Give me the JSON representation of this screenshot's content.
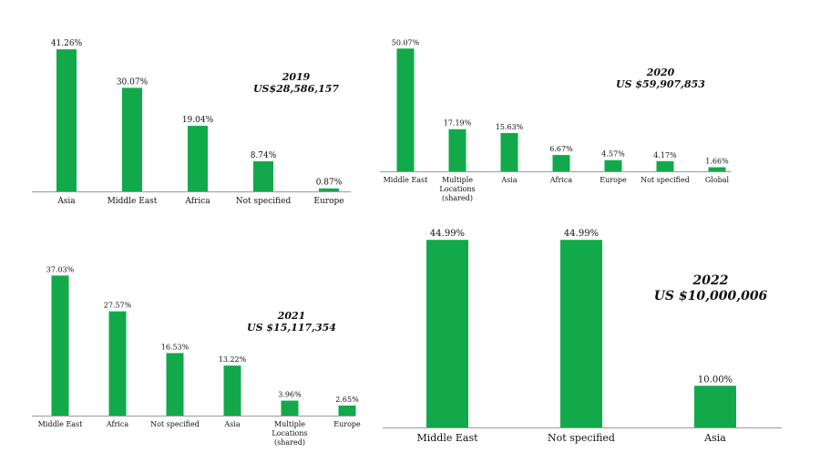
{
  "colors": {
    "bar": "#12a94b",
    "axis": "#9a9a9a",
    "text": "#111111"
  },
  "chart_data": [
    {
      "type": "bar",
      "annotation": {
        "year": "2019",
        "total": "US$28,586,157"
      },
      "categories": [
        [
          "Asia"
        ],
        [
          "Middle East"
        ],
        [
          "Africa"
        ],
        [
          "Not specified"
        ],
        [
          "Europe"
        ]
      ],
      "values": [
        41.26,
        30.07,
        19.04,
        8.74,
        0.87
      ],
      "labels": [
        "41.26%",
        "30.07%",
        "19.04%",
        "8.74%",
        "0.87%"
      ],
      "ylim": [
        0,
        45
      ]
    },
    {
      "type": "bar",
      "annotation": {
        "year": "2020",
        "total": "US $59,907,853"
      },
      "categories": [
        [
          "Middle East"
        ],
        [
          "Multiple",
          "Locations",
          "(shared)"
        ],
        [
          "Asia"
        ],
        [
          "Africa"
        ],
        [
          "Europe"
        ],
        [
          "Not specified"
        ],
        [
          "Global"
        ]
      ],
      "values": [
        50.07,
        17.19,
        15.63,
        6.67,
        4.57,
        4.17,
        1.66
      ],
      "labels": [
        "50.07%",
        "17.19%",
        "15.63%",
        "6.67%",
        "4.57%",
        "4.17%",
        "1.66%"
      ],
      "ylim": [
        0,
        55
      ]
    },
    {
      "type": "bar",
      "annotation": {
        "year": "2021",
        "total": "US $15,117,354"
      },
      "categories": [
        [
          "Middle East"
        ],
        [
          "Africa"
        ],
        [
          "Not specified"
        ],
        [
          "Asia"
        ],
        [
          "Multiple",
          "Locations",
          "(shared)"
        ],
        [
          "Europe"
        ]
      ],
      "values": [
        37.03,
        27.57,
        16.53,
        13.22,
        3.96,
        2.65
      ],
      "labels": [
        "37.03%",
        "27.57%",
        "16.53%",
        "13.22%",
        "3.96%",
        "2.65%"
      ],
      "ylim": [
        0,
        40
      ]
    },
    {
      "type": "bar",
      "annotation": {
        "year": "2022",
        "total": "US $10,000,006"
      },
      "categories": [
        [
          "Middle East"
        ],
        [
          "Not specified"
        ],
        [
          "Asia"
        ]
      ],
      "values": [
        44.99,
        44.99,
        10.0
      ],
      "labels": [
        "44.99%",
        "44.99%",
        "10.00%"
      ],
      "ylim": [
        0,
        47
      ]
    }
  ]
}
